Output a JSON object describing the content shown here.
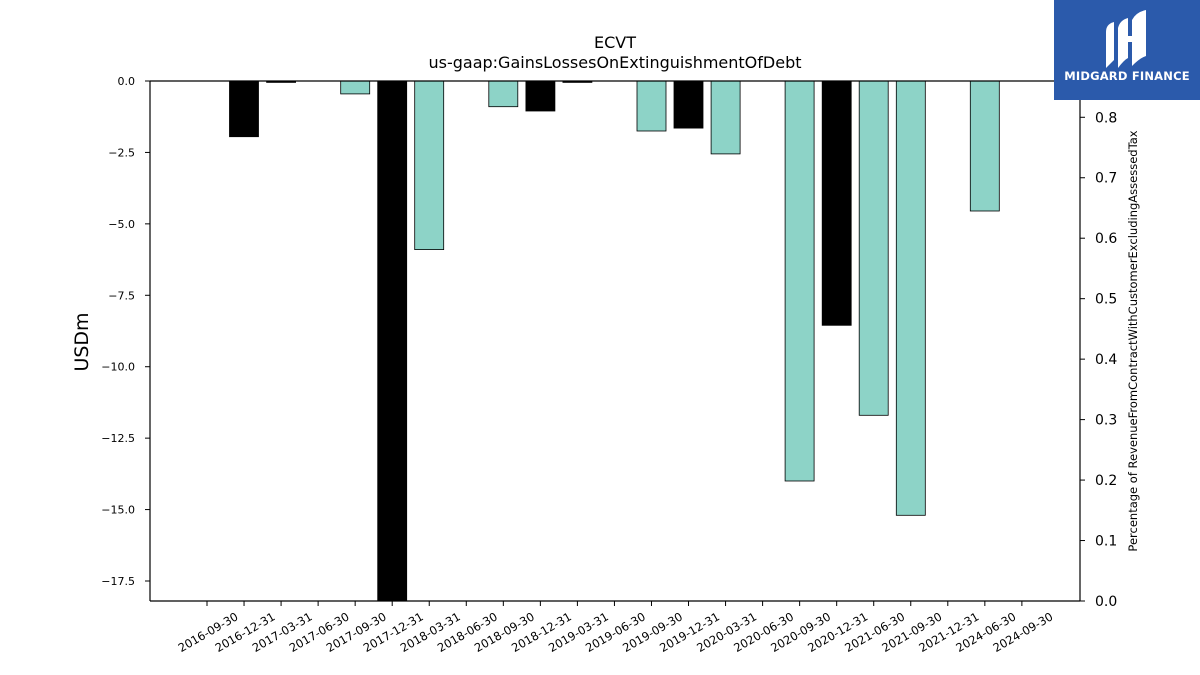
{
  "logo": {
    "text": "MIDGARD FINANCE",
    "icon": "midgard-m-logo-icon",
    "bg_color": "#2b5aab"
  },
  "chart_data": {
    "type": "bar",
    "title": "ECVT",
    "subtitle": "us-gaap:GainsLossesOnExtinguishmentOfDebt",
    "ylabel": "USDm",
    "ylabel_right": "Percentage of RevenueFromContractWithCustomerExcludingAssessedTax",
    "ylim": [
      -18.2,
      0
    ],
    "yticks": [
      0.0,
      -2.5,
      -5.0,
      -7.5,
      -10.0,
      -12.5,
      -15.0,
      -17.5
    ],
    "ytick_labels": [
      "0.0",
      "−2.5",
      "−5.0",
      "−7.5",
      "−10.0",
      "−12.5",
      "−15.0",
      "−17.5"
    ],
    "ylim_right": [
      0,
      0.86
    ],
    "yticks_right": [
      0.0,
      0.1,
      0.2,
      0.3,
      0.4,
      0.5,
      0.6,
      0.7,
      0.8
    ],
    "ytick_labels_right": [
      "0.0",
      "0.1",
      "0.2",
      "0.3",
      "0.4",
      "0.5",
      "0.6",
      "0.7",
      "0.8"
    ],
    "colors": {
      "quarterly": "#8dd3c7",
      "annual": "#000000"
    },
    "grid": false,
    "categories": [
      "2016-09-30",
      "2016-12-31",
      "2017-03-31",
      "2017-06-30",
      "2017-09-30",
      "2017-12-31",
      "2018-03-31",
      "2018-06-30",
      "2018-09-30",
      "2018-12-31",
      "2019-03-31",
      "2019-06-30",
      "2019-09-30",
      "2019-12-31",
      "2020-03-31",
      "2020-06-30",
      "2020-09-30",
      "2020-12-31",
      "2021-06-30",
      "2021-09-30",
      "2021-12-31",
      "2024-06-30",
      "2024-09-30"
    ],
    "bars": [
      {
        "x": "2016-12-31",
        "value": -1.95,
        "kind": "annual"
      },
      {
        "x": "2017-03-31",
        "value": -0.05,
        "kind": "annual"
      },
      {
        "x": "2017-09-30",
        "value": -0.45,
        "kind": "quarterly"
      },
      {
        "x": "2017-12-31",
        "value": -18.2,
        "kind": "annual"
      },
      {
        "x": "2018-03-31",
        "value": -5.9,
        "kind": "quarterly"
      },
      {
        "x": "2018-09-30",
        "value": -0.9,
        "kind": "quarterly"
      },
      {
        "x": "2018-12-31",
        "value": -1.05,
        "kind": "annual"
      },
      {
        "x": "2019-03-31",
        "value": -0.05,
        "kind": "annual"
      },
      {
        "x": "2019-09-30",
        "value": -1.75,
        "kind": "quarterly"
      },
      {
        "x": "2019-12-31",
        "value": -1.65,
        "kind": "annual"
      },
      {
        "x": "2020-03-31",
        "value": -2.55,
        "kind": "quarterly"
      },
      {
        "x": "2020-09-30",
        "value": -14.0,
        "kind": "quarterly"
      },
      {
        "x": "2020-12-31",
        "value": -8.55,
        "kind": "annual"
      },
      {
        "x": "2021-06-30",
        "value": -11.7,
        "kind": "quarterly"
      },
      {
        "x": "2021-09-30",
        "value": -15.2,
        "kind": "quarterly"
      },
      {
        "x": "2024-06-30",
        "value": -4.55,
        "kind": "quarterly"
      }
    ]
  }
}
